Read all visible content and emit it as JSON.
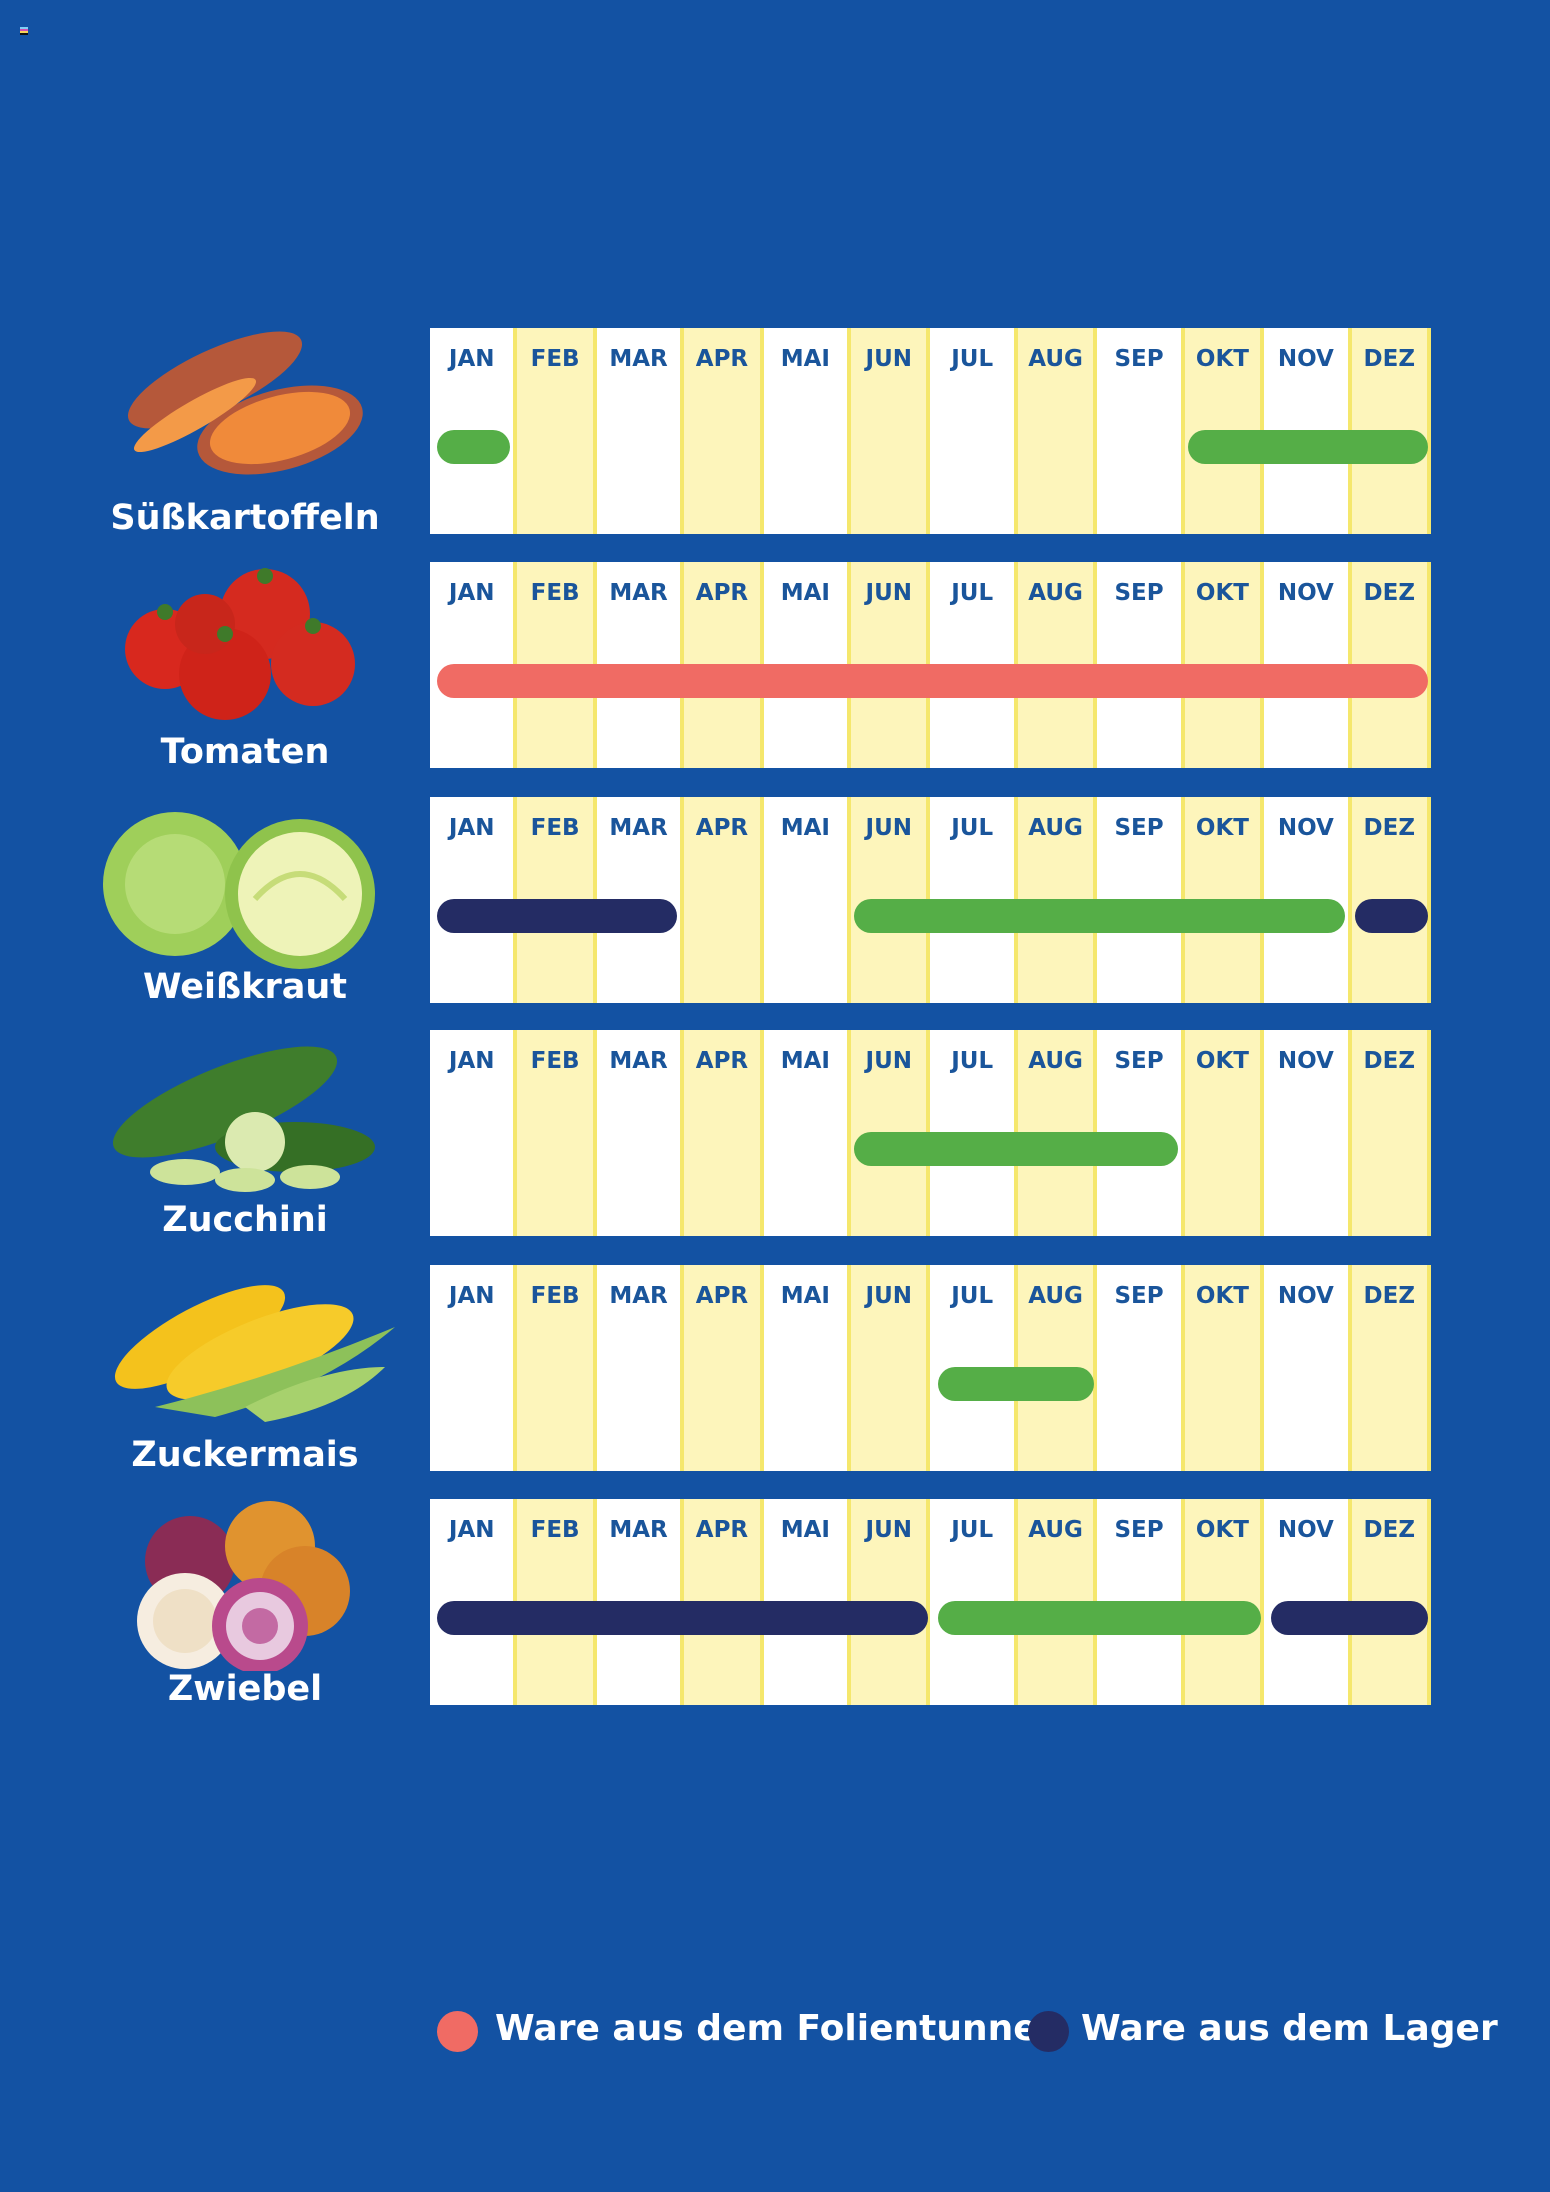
{
  "chart_data": {
    "type": "table",
    "months": [
      "JAN",
      "FEB",
      "MAR",
      "APR",
      "MAI",
      "JUN",
      "JUL",
      "AUG",
      "SEP",
      "OKT",
      "NOV",
      "DEZ"
    ],
    "legend": [
      {
        "label": "Ware aus dem Folientunnel",
        "type": "folientunnel",
        "color": "#f06b64"
      },
      {
        "label": "Ware aus dem Lager",
        "type": "lager",
        "color": "#242c64"
      }
    ],
    "type_colors": {
      "feld": "#55ae47",
      "folientunnel": "#f06b64",
      "lager": "#242c64"
    },
    "rows": [
      {
        "name": "Süßkartoffeln",
        "icon": "sweet-potato-icon",
        "bars": [
          {
            "from": "JAN",
            "to": "JAN",
            "type": "feld"
          },
          {
            "from": "OKT",
            "to": "DEZ",
            "type": "feld"
          }
        ]
      },
      {
        "name": "Tomaten",
        "icon": "tomato-icon",
        "bars": [
          {
            "from": "JAN",
            "to": "DEZ",
            "type": "folientunnel"
          }
        ]
      },
      {
        "name": "Weißkraut",
        "icon": "cabbage-icon",
        "bars": [
          {
            "from": "JAN",
            "to": "MAR",
            "type": "lager"
          },
          {
            "from": "JUN",
            "to": "NOV",
            "type": "feld"
          },
          {
            "from": "DEZ",
            "to": "DEZ",
            "type": "lager"
          }
        ]
      },
      {
        "name": "Zucchini",
        "icon": "zucchini-icon",
        "bars": [
          {
            "from": "JUN",
            "to": "SEP",
            "type": "feld"
          }
        ]
      },
      {
        "name": "Zuckermais",
        "icon": "corn-icon",
        "bars": [
          {
            "from": "JUL",
            "to": "AUG",
            "type": "feld"
          }
        ]
      },
      {
        "name": "Zwiebel",
        "icon": "onion-icon",
        "bars": [
          {
            "from": "JAN",
            "to": "JUN",
            "type": "lager"
          },
          {
            "from": "JUL",
            "to": "OKT",
            "type": "feld"
          },
          {
            "from": "NOV",
            "to": "DEZ",
            "type": "lager"
          }
        ]
      }
    ]
  }
}
